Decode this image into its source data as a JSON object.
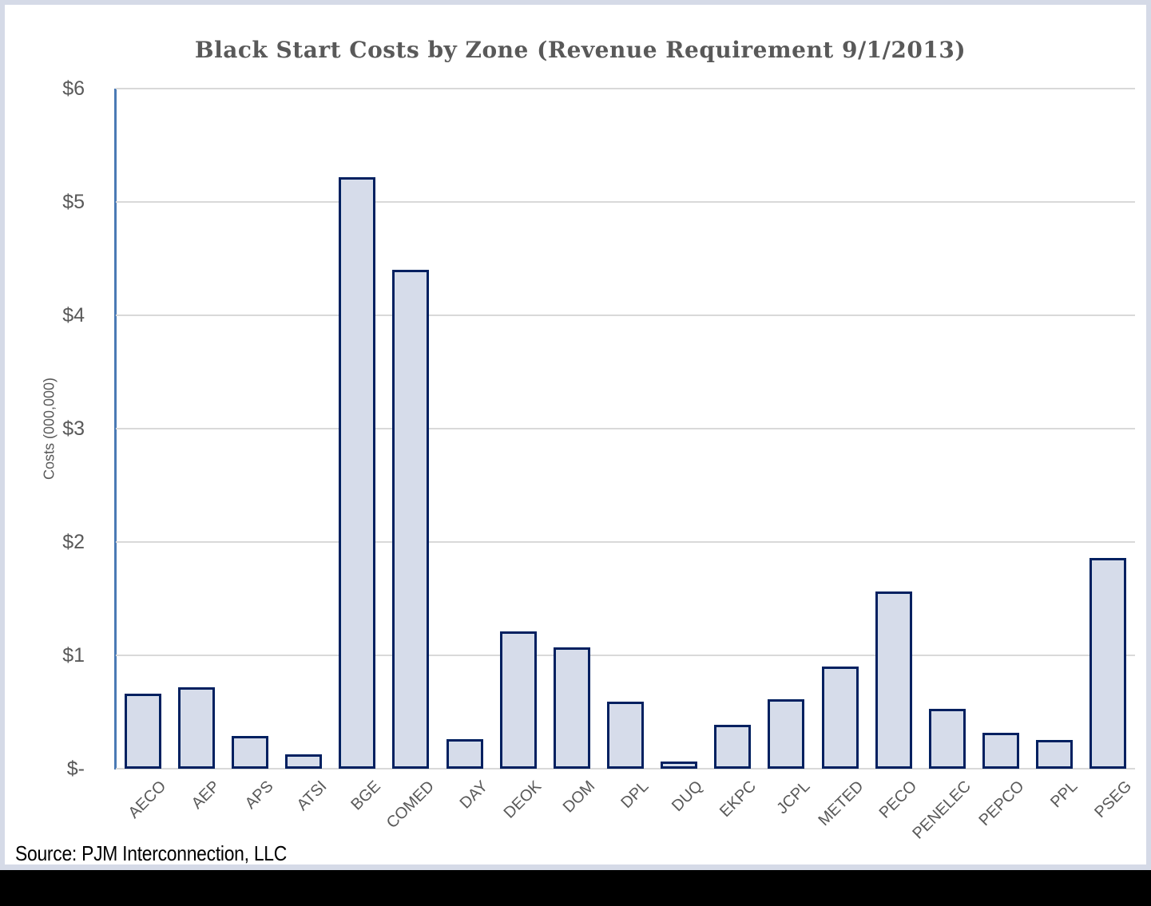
{
  "chart_data": {
    "type": "bar",
    "title": "Black Start Costs by Zone (Revenue Requirement 9/1/2013)",
    "ylabel": "Costs (000,000)",
    "xlabel": "",
    "categories": [
      "AECO",
      "AEP",
      "APS",
      "ATSI",
      "BGE",
      "COMED",
      "DAY",
      "DEOK",
      "DOM",
      "DPL",
      "DUQ",
      "EKPC",
      "JCPL",
      "METED",
      "PECO",
      "PENELEC",
      "PEPCO",
      "PPL",
      "PSEG"
    ],
    "values": [
      0.66,
      0.72,
      0.29,
      0.13,
      5.22,
      4.4,
      0.26,
      1.21,
      1.07,
      0.59,
      0.06,
      0.39,
      0.61,
      0.9,
      1.56,
      0.53,
      0.32,
      0.25,
      1.86
    ],
    "ylim": [
      0,
      6
    ],
    "ytick_labels": [
      "$-",
      "$1",
      "$2",
      "$3",
      "$4",
      "$5",
      "$6"
    ],
    "grid": true,
    "legend": "none",
    "bar_fill": "#d6dcea",
    "bar_border": "#002060",
    "axis_line_color": "#4a7ab5",
    "gridline_color": "#d9d9d9",
    "label_color": "#595959",
    "frame_border_color": "#d5dae7",
    "footer_color": "#000000"
  },
  "source": {
    "text": "Source: PJM Interconnection, LLC"
  }
}
